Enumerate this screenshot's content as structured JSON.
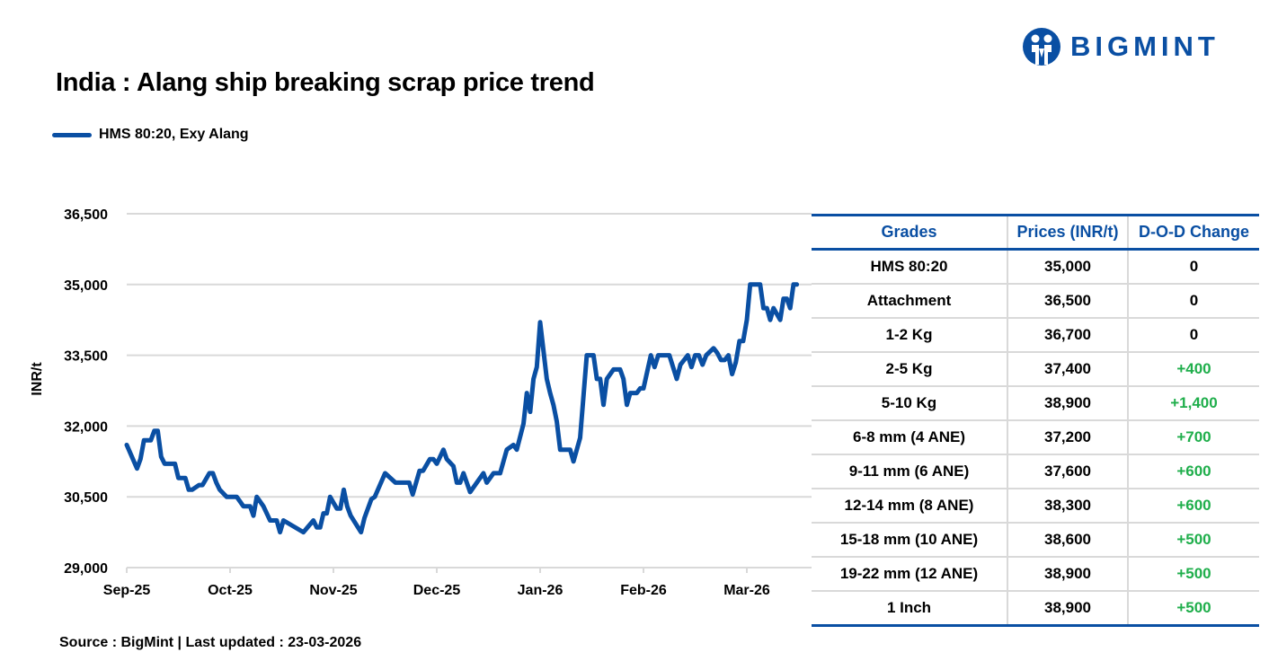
{
  "header": {
    "title": "India : Alang ship breaking scrap price trend",
    "logo_text": "BIGMINT"
  },
  "footer": {
    "source": "Source : BigMint | Last updated : 23-03-2026"
  },
  "colors": {
    "line": "#0a4fa3",
    "positive_change": "#1fae4b",
    "grid": "#d9d9d9",
    "brand": "#0a4fa3"
  },
  "chart_data": {
    "type": "line",
    "title": "India : Alang ship breaking scrap price trend",
    "xlabel": "",
    "ylabel": "INR/t",
    "ylim": [
      29000,
      36500
    ],
    "yticks": [
      29000,
      30500,
      32000,
      33500,
      35000,
      36500
    ],
    "ytick_labels": [
      "29,000",
      "30,500",
      "32,000",
      "33,500",
      "35,000",
      "36,500"
    ],
    "xtick_labels": [
      "Sep-25",
      "Oct-25",
      "Nov-25",
      "Dec-25",
      "Jan-26",
      "Feb-26",
      "Mar-26"
    ],
    "xticks": [
      "2025-09-01",
      "2025-10-01",
      "2025-11-01",
      "2025-12-01",
      "2026-01-01",
      "2026-02-01",
      "2026-03-01"
    ],
    "grid": "horizontal",
    "legend": "top-left",
    "series": [
      {
        "name": "HMS 80:20, Exy Alang",
        "points": [
          [
            "2025-09-01",
            31600
          ],
          [
            "2025-09-04",
            31100
          ],
          [
            "2025-09-05",
            31300
          ],
          [
            "2025-09-06",
            31700
          ],
          [
            "2025-09-08",
            31700
          ],
          [
            "2025-09-09",
            31900
          ],
          [
            "2025-09-10",
            31900
          ],
          [
            "2025-09-11",
            31350
          ],
          [
            "2025-09-12",
            31200
          ],
          [
            "2025-09-15",
            31200
          ],
          [
            "2025-09-16",
            30900
          ],
          [
            "2025-09-18",
            30900
          ],
          [
            "2025-09-19",
            30650
          ],
          [
            "2025-09-20",
            30650
          ],
          [
            "2025-09-22",
            30750
          ],
          [
            "2025-09-23",
            30750
          ],
          [
            "2025-09-25",
            31000
          ],
          [
            "2025-09-26",
            31000
          ],
          [
            "2025-09-27",
            30800
          ],
          [
            "2025-09-28",
            30650
          ],
          [
            "2025-09-30",
            30500
          ],
          [
            "2025-10-03",
            30500
          ],
          [
            "2025-10-05",
            30300
          ],
          [
            "2025-10-07",
            30300
          ],
          [
            "2025-10-08",
            30100
          ],
          [
            "2025-10-09",
            30500
          ],
          [
            "2025-10-11",
            30300
          ],
          [
            "2025-10-13",
            30000
          ],
          [
            "2025-10-15",
            30000
          ],
          [
            "2025-10-16",
            29750
          ],
          [
            "2025-10-17",
            30000
          ],
          [
            "2025-10-23",
            29750
          ],
          [
            "2025-10-26",
            30000
          ],
          [
            "2025-10-27",
            29850
          ],
          [
            "2025-10-28",
            29850
          ],
          [
            "2025-10-29",
            30150
          ],
          [
            "2025-10-30",
            30150
          ],
          [
            "2025-10-31",
            30500
          ],
          [
            "2025-11-02",
            30250
          ],
          [
            "2025-11-03",
            30250
          ],
          [
            "2025-11-04",
            30650
          ],
          [
            "2025-11-05",
            30300
          ],
          [
            "2025-11-06",
            30100
          ],
          [
            "2025-11-09",
            29750
          ],
          [
            "2025-11-10",
            30050
          ],
          [
            "2025-11-12",
            30450
          ],
          [
            "2025-11-13",
            30500
          ],
          [
            "2025-11-16",
            31000
          ],
          [
            "2025-11-19",
            30800
          ],
          [
            "2025-11-23",
            30800
          ],
          [
            "2025-11-24",
            30550
          ],
          [
            "2025-11-26",
            31050
          ],
          [
            "2025-11-27",
            31050
          ],
          [
            "2025-11-29",
            31300
          ],
          [
            "2025-11-30",
            31300
          ],
          [
            "2025-12-01",
            31200
          ],
          [
            "2025-12-03",
            31500
          ],
          [
            "2025-12-04",
            31300
          ],
          [
            "2025-12-06",
            31150
          ],
          [
            "2025-12-07",
            30800
          ],
          [
            "2025-12-08",
            30800
          ],
          [
            "2025-12-09",
            31000
          ],
          [
            "2025-12-11",
            30600
          ],
          [
            "2025-12-15",
            31000
          ],
          [
            "2025-12-16",
            30800
          ],
          [
            "2025-12-18",
            31000
          ],
          [
            "2025-12-20",
            31000
          ],
          [
            "2025-12-22",
            31500
          ],
          [
            "2025-12-24",
            31600
          ],
          [
            "2025-12-25",
            31500
          ],
          [
            "2025-12-27",
            32050
          ],
          [
            "2025-12-28",
            32700
          ],
          [
            "2025-12-29",
            32300
          ],
          [
            "2025-12-30",
            33000
          ],
          [
            "2025-12-31",
            33250
          ],
          [
            "2026-01-01",
            34200
          ],
          [
            "2026-01-03",
            33000
          ],
          [
            "2026-01-04",
            32700
          ],
          [
            "2026-01-05",
            32450
          ],
          [
            "2026-01-06",
            32100
          ],
          [
            "2026-01-07",
            31500
          ],
          [
            "2026-01-10",
            31500
          ],
          [
            "2026-01-11",
            31250
          ],
          [
            "2026-01-13",
            31750
          ],
          [
            "2026-01-15",
            33500
          ],
          [
            "2026-01-17",
            33500
          ],
          [
            "2026-01-18",
            33000
          ],
          [
            "2026-01-19",
            33000
          ],
          [
            "2026-01-20",
            32450
          ],
          [
            "2026-01-21",
            33000
          ],
          [
            "2026-01-23",
            33200
          ],
          [
            "2026-01-25",
            33200
          ],
          [
            "2026-01-26",
            33000
          ],
          [
            "2026-01-27",
            32450
          ],
          [
            "2026-01-28",
            32700
          ],
          [
            "2026-01-30",
            32700
          ],
          [
            "2026-01-31",
            32800
          ],
          [
            "2026-02-01",
            32800
          ],
          [
            "2026-02-03",
            33500
          ],
          [
            "2026-02-04",
            33250
          ],
          [
            "2026-02-05",
            33500
          ],
          [
            "2026-02-08",
            33500
          ],
          [
            "2026-02-09",
            33250
          ],
          [
            "2026-02-10",
            33000
          ],
          [
            "2026-02-11",
            33300
          ],
          [
            "2026-02-13",
            33500
          ],
          [
            "2026-02-14",
            33250
          ],
          [
            "2026-02-15",
            33500
          ],
          [
            "2026-02-16",
            33500
          ],
          [
            "2026-02-17",
            33300
          ],
          [
            "2026-02-18",
            33500
          ],
          [
            "2026-02-20",
            33650
          ],
          [
            "2026-02-21",
            33550
          ],
          [
            "2026-02-22",
            33400
          ],
          [
            "2026-02-23",
            33400
          ],
          [
            "2026-02-24",
            33500
          ],
          [
            "2026-02-25",
            33100
          ],
          [
            "2026-02-26",
            33350
          ],
          [
            "2026-02-27",
            33800
          ],
          [
            "2026-02-28",
            33800
          ],
          [
            "2026-03-01",
            34250
          ],
          [
            "2026-03-02",
            35000
          ],
          [
            "2026-03-05",
            35000
          ],
          [
            "2026-03-06",
            34500
          ],
          [
            "2026-03-07",
            34500
          ],
          [
            "2026-03-08",
            34250
          ],
          [
            "2026-03-09",
            34500
          ],
          [
            "2026-03-11",
            34250
          ],
          [
            "2026-03-12",
            34700
          ],
          [
            "2026-03-13",
            34700
          ],
          [
            "2026-03-14",
            34500
          ],
          [
            "2026-03-15",
            35000
          ],
          [
            "2026-03-16",
            35000
          ]
        ]
      }
    ]
  },
  "table": {
    "headers": [
      "Grades",
      "Prices (INR/t)",
      "D-O-D Change"
    ],
    "rows": [
      [
        "HMS 80:20",
        "35,000",
        "0"
      ],
      [
        "Attachment",
        "36,500",
        "0"
      ],
      [
        "1-2 Kg",
        "36,700",
        "0"
      ],
      [
        "2-5 Kg",
        "37,400",
        "+400"
      ],
      [
        "5-10 Kg",
        "38,900",
        "+1,400"
      ],
      [
        "6-8 mm (4 ANE)",
        "37,200",
        "+700"
      ],
      [
        "9-11 mm (6 ANE)",
        "37,600",
        "+600"
      ],
      [
        "12-14 mm (8 ANE)",
        "38,300",
        "+600"
      ],
      [
        "15-18 mm (10 ANE)",
        "38,600",
        "+500"
      ],
      [
        "19-22 mm (12 ANE)",
        "38,900",
        "+500"
      ],
      [
        "1 Inch",
        "38,900",
        "+500"
      ]
    ]
  }
}
